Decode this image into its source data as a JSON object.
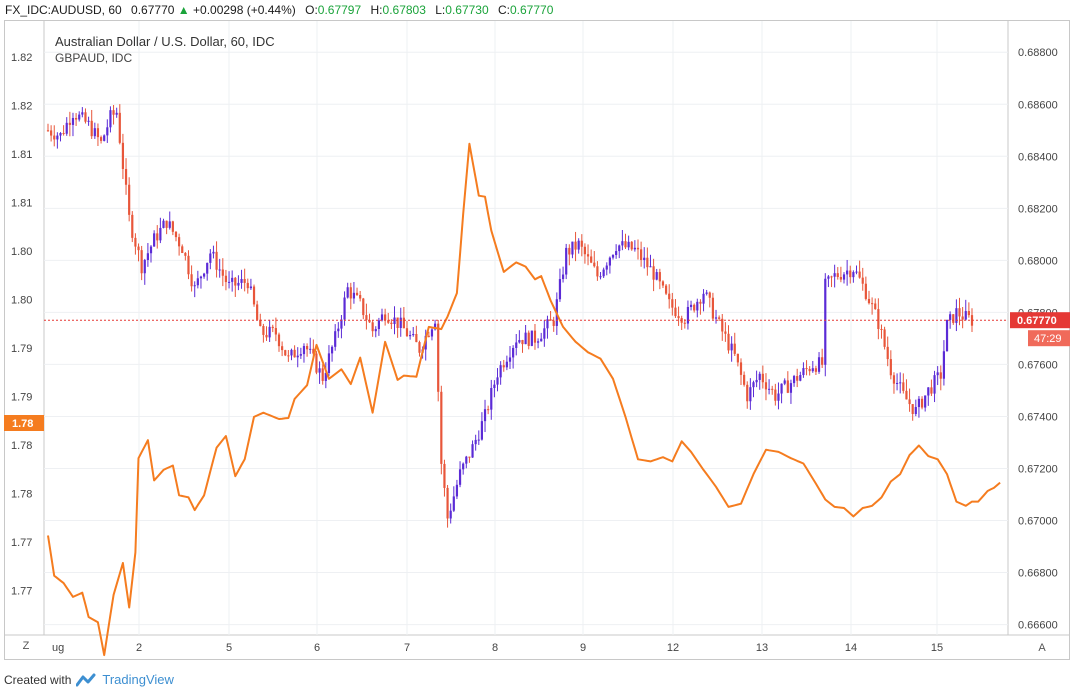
{
  "header": {
    "symbol": "FX_IDC:AUDUSD, 60",
    "last": "0.67770",
    "change_arrow": "▲",
    "change": "+0.00298 (+0.44%)",
    "o_label": "O:",
    "o_value": "0.67797",
    "h_label": "H:",
    "h_value": "0.67803",
    "l_label": "L:",
    "l_value": "0.67730",
    "c_label": "C:",
    "c_value": "0.67770"
  },
  "legend": {
    "main": "Australian Dollar / U.S. Dollar, 60, IDC",
    "compare": "GBPAUD, IDC"
  },
  "footer": {
    "created_with": "Created with",
    "brand": "TradingView"
  },
  "buttons": {
    "left": "Z",
    "right": "A"
  },
  "colors": {
    "up": "#5b2bd6",
    "down": "#e8563a",
    "compare": "#f57c1f",
    "price_line": "#e53935"
  },
  "chart_data": {
    "type": "candlestick",
    "x_tick_labels": [
      "ug",
      "2",
      "5",
      "6",
      "7",
      "8",
      "9",
      "12",
      "13",
      "14",
      "15"
    ],
    "left_axis": {
      "tick_labels": [
        "1.82",
        "1.82",
        "1.81",
        "1.81",
        "1.80",
        "1.80",
        "1.79",
        "1.79",
        "1.78",
        "1.78",
        "1.77",
        "1.77"
      ],
      "marker_label": "1.78"
    },
    "right_axis": {
      "tick_labels": [
        "0.68800",
        "0.68600",
        "0.68400",
        "0.68200",
        "0.68000",
        "0.67800",
        "0.67600",
        "0.67400",
        "0.67200",
        "0.67000",
        "0.66800",
        "0.66600"
      ],
      "ticks": [
        0.688,
        0.686,
        0.684,
        0.682,
        0.68,
        0.678,
        0.676,
        0.674,
        0.672,
        0.67,
        0.668,
        0.666
      ],
      "price_label": "0.67770",
      "countdown_label": "47:29",
      "price": 0.6777
    },
    "series": [
      {
        "name": "AUDUSD",
        "anchors": [
          [
            0,
            0.685
          ],
          [
            4,
            0.6848
          ],
          [
            8,
            0.6857
          ],
          [
            13,
            0.6852
          ],
          [
            17,
            0.6845
          ],
          [
            20,
            0.6855
          ],
          [
            22,
            0.6857
          ],
          [
            26,
            0.6816
          ],
          [
            30,
            0.6798
          ],
          [
            34,
            0.6808
          ],
          [
            38,
            0.6815
          ],
          [
            43,
            0.6805
          ],
          [
            47,
            0.6789
          ],
          [
            52,
            0.6803
          ],
          [
            58,
            0.679
          ],
          [
            64,
            0.6792
          ],
          [
            68,
            0.6772
          ],
          [
            73,
            0.6772
          ],
          [
            77,
            0.6762
          ],
          [
            82,
            0.6768
          ],
          [
            88,
            0.6755
          ],
          [
            92,
            0.677
          ],
          [
            96,
            0.6789
          ],
          [
            100,
            0.6783
          ],
          [
            104,
            0.6773
          ],
          [
            108,
            0.678
          ],
          [
            113,
            0.6775
          ],
          [
            119,
            0.6766
          ],
          [
            124,
            0.6778
          ],
          [
            126,
            0.6722
          ],
          [
            128,
            0.6701
          ],
          [
            132,
            0.6718
          ],
          [
            136,
            0.6728
          ],
          [
            140,
            0.674
          ],
          [
            144,
            0.6757
          ],
          [
            150,
            0.677
          ],
          [
            156,
            0.677
          ],
          [
            162,
            0.6777
          ],
          [
            166,
            0.6803
          ],
          [
            170,
            0.6806
          ],
          [
            176,
            0.6794
          ],
          [
            182,
            0.6806
          ],
          [
            188,
            0.6804
          ],
          [
            194,
            0.6795
          ],
          [
            199,
            0.6783
          ],
          [
            204,
            0.6778
          ],
          [
            210,
            0.6788
          ],
          [
            215,
            0.6775
          ],
          [
            220,
            0.6763
          ],
          [
            224,
            0.6748
          ],
          [
            228,
            0.6756
          ],
          [
            233,
            0.6748
          ],
          [
            240,
            0.6755
          ],
          [
            245,
            0.676
          ],
          [
            248,
            0.676
          ],
          [
            249,
            0.679
          ],
          [
            252,
            0.6794
          ],
          [
            258,
            0.6797
          ],
          [
            262,
            0.6788
          ],
          [
            266,
            0.6776
          ],
          [
            270,
            0.6758
          ],
          [
            274,
            0.6748
          ],
          [
            278,
            0.6742
          ],
          [
            282,
            0.675
          ],
          [
            286,
            0.6756
          ],
          [
            288,
            0.6775
          ],
          [
            291,
            0.678
          ],
          [
            294,
            0.6778
          ],
          [
            296,
            0.6777
          ]
        ],
        "up_color": "#5b2bd6",
        "down_color": "#e8563a"
      },
      {
        "name": "GBPAUD",
        "anchors": [
          [
            0,
            1.7754
          ],
          [
            2,
            1.7716
          ],
          [
            5,
            1.7709
          ],
          [
            8,
            1.7696
          ],
          [
            11,
            1.77
          ],
          [
            13,
            1.7677
          ],
          [
            16,
            1.7672
          ],
          [
            18,
            1.7641
          ],
          [
            21,
            1.7698
          ],
          [
            24,
            1.7728
          ],
          [
            26,
            1.7686
          ],
          [
            28,
            1.7738
          ],
          [
            29,
            1.7827
          ],
          [
            32,
            1.7844
          ],
          [
            34,
            1.7806
          ],
          [
            37,
            1.7816
          ],
          [
            40,
            1.782
          ],
          [
            42,
            1.7792
          ],
          [
            45,
            1.779
          ],
          [
            47,
            1.7778
          ],
          [
            50,
            1.7792
          ],
          [
            54,
            1.7837
          ],
          [
            57,
            1.7848
          ],
          [
            60,
            1.781
          ],
          [
            63,
            1.7826
          ],
          [
            66,
            1.7866
          ],
          [
            69,
            1.787
          ],
          [
            74,
            1.7864
          ],
          [
            77,
            1.7865
          ],
          [
            79,
            1.7883
          ],
          [
            83,
            1.7896
          ],
          [
            86,
            1.7934
          ],
          [
            90,
            1.7902
          ],
          [
            94,
            1.7911
          ],
          [
            97,
            1.7897
          ],
          [
            100,
            1.7922
          ],
          [
            104,
            1.787
          ],
          [
            108,
            1.7937
          ],
          [
            112,
            1.7901
          ],
          [
            114,
            1.7905
          ],
          [
            118,
            1.7904
          ],
          [
            122,
            1.7951
          ],
          [
            126,
            1.7949
          ],
          [
            128,
            1.7961
          ],
          [
            131,
            1.7983
          ],
          [
            133,
            1.8058
          ],
          [
            135,
            1.8124
          ],
          [
            138,
            1.8075
          ],
          [
            140,
            1.8074
          ],
          [
            142,
            1.8042
          ],
          [
            146,
            1.8003
          ],
          [
            150,
            1.8012
          ],
          [
            153,
            1.8008
          ],
          [
            156,
            1.7996
          ],
          [
            158,
            1.7999
          ],
          [
            161,
            1.7976
          ],
          [
            165,
            1.7951
          ],
          [
            169,
            1.7937
          ],
          [
            173,
            1.7927
          ],
          [
            177,
            1.7921
          ],
          [
            181,
            1.7902
          ],
          [
            185,
            1.7866
          ],
          [
            189,
            1.7826
          ],
          [
            193,
            1.7824
          ],
          [
            197,
            1.7828
          ],
          [
            200,
            1.7824
          ],
          [
            203,
            1.7843
          ],
          [
            206,
            1.7833
          ],
          [
            210,
            1.7816
          ],
          [
            214,
            1.78
          ],
          [
            218,
            1.7781
          ],
          [
            222,
            1.7784
          ],
          [
            226,
            1.7812
          ],
          [
            230,
            1.7835
          ],
          [
            234,
            1.7833
          ],
          [
            238,
            1.7827
          ],
          [
            242,
            1.7822
          ],
          [
            246,
            1.7803
          ],
          [
            249,
            1.7788
          ],
          [
            252,
            1.7781
          ],
          [
            255,
            1.778
          ],
          [
            258,
            1.7772
          ],
          [
            261,
            1.778
          ],
          [
            264,
            1.7782
          ],
          [
            267,
            1.779
          ],
          [
            270,
            1.7805
          ],
          [
            273,
            1.7812
          ],
          [
            276,
            1.783
          ],
          [
            279,
            1.7839
          ],
          [
            282,
            1.7829
          ],
          [
            285,
            1.7826
          ],
          [
            288,
            1.7812
          ],
          [
            291,
            1.7786
          ],
          [
            294,
            1.7782
          ],
          [
            296,
            1.7786
          ],
          [
            298,
            1.7786
          ],
          [
            301,
            1.7796
          ],
          [
            303,
            1.7799
          ],
          [
            305,
            1.7804
          ]
        ],
        "color": "#f57c1f"
      }
    ],
    "left_range": [
      1.766,
      1.824
    ],
    "right_range": [
      0.6656,
      0.6892
    ],
    "grid": true
  }
}
